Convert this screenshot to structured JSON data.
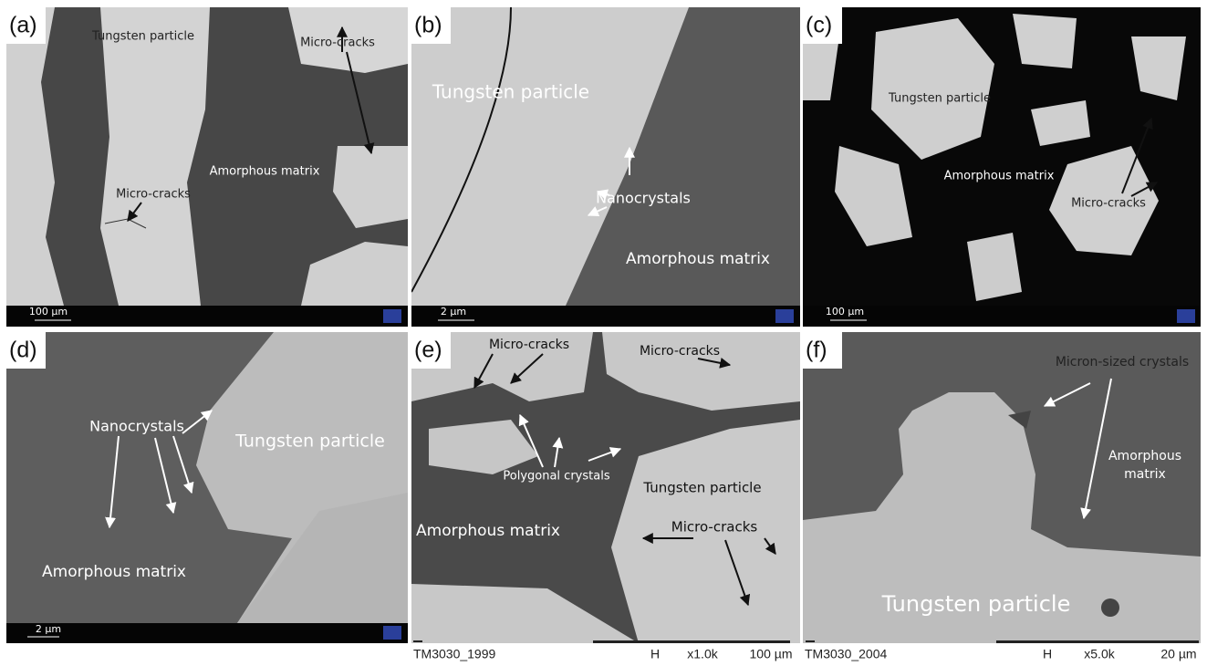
{
  "panels": [
    {
      "label": "(a)",
      "texts": [
        "Tungsten particle",
        "Micro-cracks",
        "Amorphous matrix",
        "Micro-cracks"
      ],
      "scale_bar": "100 µm"
    },
    {
      "label": "(b)",
      "texts": [
        "Tungsten particle",
        "Nanocrystals",
        "Amorphous matrix"
      ],
      "scale_bar": "2 µm"
    },
    {
      "label": "(c)",
      "texts": [
        "Tungsten particle",
        "Amorphous matrix",
        "Micro-cracks"
      ],
      "scale_bar": "100 µm"
    },
    {
      "label": "(d)",
      "texts": [
        "Nanocrystals",
        "Tungsten particle",
        "Amorphous matrix"
      ],
      "scale_bar": "2 µm"
    },
    {
      "label": "(e)",
      "texts": [
        "Micro-cracks",
        "Micro-cracks",
        "Polygonal crystals",
        "Tungsten particle",
        "Amorphous matrix",
        "Micro-cracks"
      ],
      "footer": [
        "TM3030_1999",
        "H",
        "x1.0k",
        "100 µm"
      ]
    },
    {
      "label": "(f)",
      "texts": [
        "Micron-sized crystals",
        "Amorphous",
        "matrix",
        "Tungsten particle"
      ],
      "footer": [
        "TM3030_2004",
        "H",
        "x5.0k",
        "20 µm"
      ]
    }
  ]
}
